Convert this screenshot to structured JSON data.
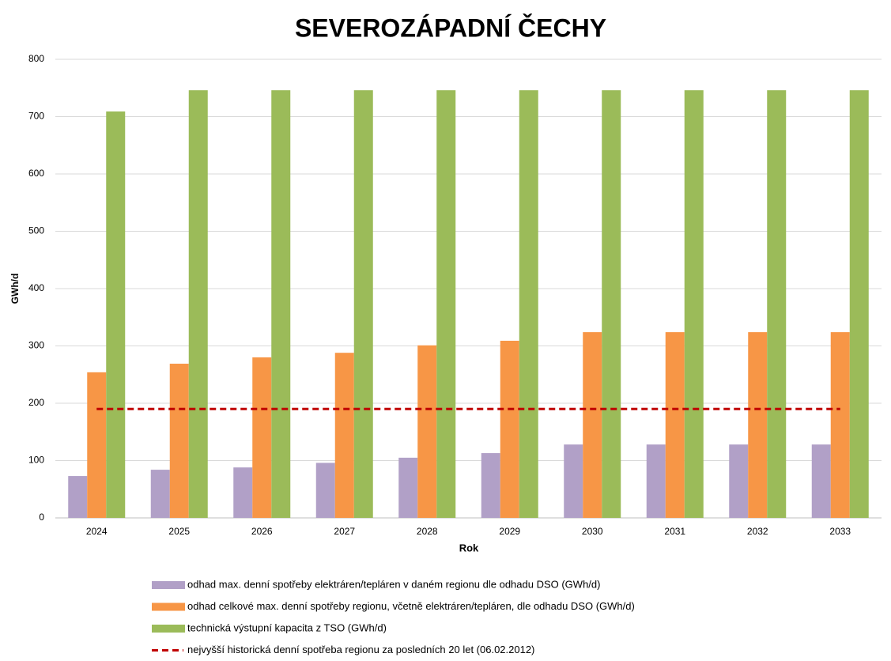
{
  "chart_data": {
    "type": "bar",
    "title": "SEVEROZÁPADNÍ ČECHY",
    "x_label": "Rok",
    "y_label": "GWh/d",
    "categories": [
      "2024",
      "2025",
      "2026",
      "2027",
      "2028",
      "2029",
      "2030",
      "2031",
      "2032",
      "2033"
    ],
    "series": [
      {
        "name": "odhad max. denní spotřeby elektráren/tepláren v daném regionu dle odhadu DSO (GWh/d)",
        "color": "#b1a0c7",
        "values": [
          73,
          84,
          88,
          96,
          105,
          113,
          128,
          128,
          128,
          128
        ]
      },
      {
        "name": "odhad celkové max. denní spotřeby regionu, včetně elektráren/tepláren, dle odhadu DSO (GWh/d)",
        "color": "#f79646",
        "values": [
          254,
          269,
          280,
          288,
          301,
          309,
          324,
          324,
          324,
          324
        ]
      },
      {
        "name": "technická výstupní kapacita z TSO (GWh/d)",
        "color": "#9bbb59",
        "values": [
          709,
          746,
          746,
          746,
          746,
          746,
          746,
          746,
          746,
          746
        ]
      },
      {
        "name": "nejvyšší historická denní spotřeba regionu za posledních 20 let (06.02.2012)",
        "color": "#c00000",
        "type": "line",
        "dashed": true,
        "values": [
          190,
          190,
          190,
          190,
          190,
          190,
          190,
          190,
          190,
          190
        ]
      }
    ],
    "ylim": [
      0,
      800
    ],
    "yticks": [
      0,
      100,
      200,
      300,
      400,
      500,
      600,
      700,
      800
    ],
    "grid": true,
    "legend": "bottom"
  }
}
